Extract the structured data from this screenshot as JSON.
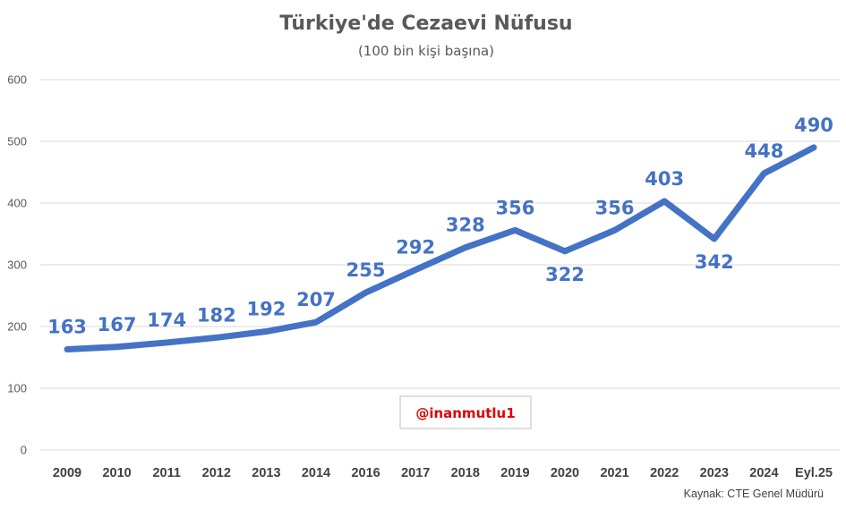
{
  "chart_data": {
    "type": "line",
    "title": "Türkiye'de Cezaevi Nüfusu",
    "subtitle": "(100 bin kişi başına)",
    "categories": [
      "2009",
      "2010",
      "2011",
      "2012",
      "2013",
      "2014",
      "2016",
      "2017",
      "2018",
      "2019",
      "2020",
      "2021",
      "2022",
      "2023",
      "2024",
      "Eyl.25"
    ],
    "values": [
      163,
      167,
      174,
      182,
      192,
      207,
      255,
      292,
      328,
      356,
      322,
      356,
      403,
      342,
      448,
      490
    ],
    "data_labels": [
      "163",
      "167",
      "174",
      "182",
      "192",
      "207",
      "255",
      "292",
      "328",
      "356",
      "322",
      "356",
      "403",
      "342",
      "448",
      "490"
    ],
    "ylim": [
      0,
      600
    ],
    "yticks": [
      0,
      100,
      200,
      300,
      400,
      500,
      600
    ],
    "ytick_labels": [
      "0",
      "100",
      "200",
      "300",
      "400",
      "500",
      "600"
    ],
    "grid": true,
    "legend": "none",
    "line_color": "#4472C4",
    "label_color": "#4472C4",
    "source": "Kaynak: CTE Genel Müdürü",
    "watermark": "@inanmutlu1",
    "watermark_color": "#E00000"
  }
}
